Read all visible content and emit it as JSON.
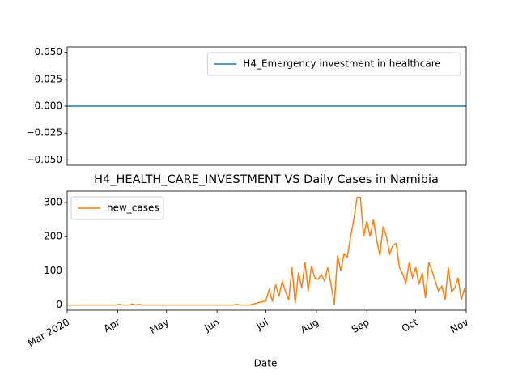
{
  "chart_data": [
    {
      "type": "line",
      "x": [
        0,
        245
      ],
      "xlim": [
        0,
        245
      ],
      "ylim": [
        -0.055,
        0.055
      ],
      "yticks": [
        {
          "value": -0.05,
          "label": "−0.050"
        },
        {
          "value": -0.025,
          "label": "−0.025"
        },
        {
          "value": 0,
          "label": "0.000"
        },
        {
          "value": 0.025,
          "label": "0.025"
        },
        {
          "value": 0.05,
          "label": "0.050"
        }
      ],
      "legend": "upper right",
      "series": [
        {
          "name": "H4_Emergency investment in healthcare",
          "color": "#1f77b4",
          "values": [
            0,
            0
          ]
        }
      ]
    },
    {
      "type": "line",
      "title": "H4_HEALTH_CARE_INVESTMENT VS Daily Cases in Namibia",
      "xlabel": "Date",
      "x": [
        0,
        2,
        4,
        6,
        8,
        10,
        12,
        14,
        16,
        18,
        20,
        22,
        24,
        26,
        28,
        30,
        32,
        34,
        36,
        38,
        40,
        42,
        44,
        46,
        48,
        50,
        52,
        54,
        56,
        58,
        60,
        62,
        64,
        66,
        68,
        70,
        72,
        74,
        76,
        78,
        80,
        82,
        84,
        86,
        88,
        90,
        92,
        94,
        96,
        98,
        100,
        102,
        104,
        106,
        108,
        110,
        112,
        114,
        116,
        118,
        120,
        122,
        124,
        126,
        128,
        130,
        132,
        134,
        136,
        138,
        140,
        142,
        144,
        146,
        148,
        150,
        152,
        154,
        156,
        158,
        160,
        162,
        164,
        166,
        168,
        170,
        172,
        174,
        176,
        178,
        180,
        182,
        184,
        186,
        188,
        190,
        192,
        194,
        196,
        198,
        200,
        202,
        204,
        206,
        208,
        210,
        212,
        214,
        216,
        218,
        220,
        222,
        224,
        226,
        228,
        230,
        232,
        234,
        236,
        238,
        240,
        242,
        244
      ],
      "xlim": [
        0,
        245
      ],
      "xticks": [
        {
          "value": 0,
          "label": "Mar 2020"
        },
        {
          "value": 31,
          "label": "Apr"
        },
        {
          "value": 61,
          "label": "May"
        },
        {
          "value": 92,
          "label": "Jun"
        },
        {
          "value": 122,
          "label": "Jul"
        },
        {
          "value": 153,
          "label": "Aug"
        },
        {
          "value": 184,
          "label": "Sep"
        },
        {
          "value": 214,
          "label": "Oct"
        },
        {
          "value": 245,
          "label": "Nov"
        }
      ],
      "ylim": [
        -15,
        333
      ],
      "yticks": [
        0,
        100,
        200,
        300
      ],
      "legend": "upper left",
      "series": [
        {
          "name": "new_cases",
          "color": "#ff7f0e",
          "values": [
            0,
            0,
            0,
            0,
            0,
            0,
            0,
            0,
            0,
            0,
            0,
            0,
            0,
            0,
            0,
            0,
            2,
            0,
            0,
            0,
            3,
            0,
            2,
            0,
            0,
            0,
            0,
            0,
            0,
            0,
            0,
            0,
            0,
            0,
            0,
            0,
            0,
            0,
            0,
            0,
            0,
            0,
            0,
            0,
            0,
            0,
            0,
            0,
            0,
            0,
            0,
            0,
            2,
            0,
            0,
            0,
            0,
            3,
            5,
            8,
            10,
            12,
            45,
            10,
            60,
            25,
            70,
            40,
            15,
            110,
            5,
            95,
            50,
            125,
            40,
            115,
            80,
            75,
            90,
            70,
            110,
            60,
            2,
            145,
            100,
            150,
            140,
            200,
            250,
            315,
            315,
            200,
            245,
            200,
            250,
            190,
            145,
            230,
            200,
            150,
            175,
            180,
            110,
            90,
            65,
            125,
            80,
            110,
            60,
            95,
            20,
            125,
            100,
            70,
            40,
            55,
            15,
            110,
            40,
            50,
            80,
            15,
            50
          ]
        }
      ]
    }
  ]
}
